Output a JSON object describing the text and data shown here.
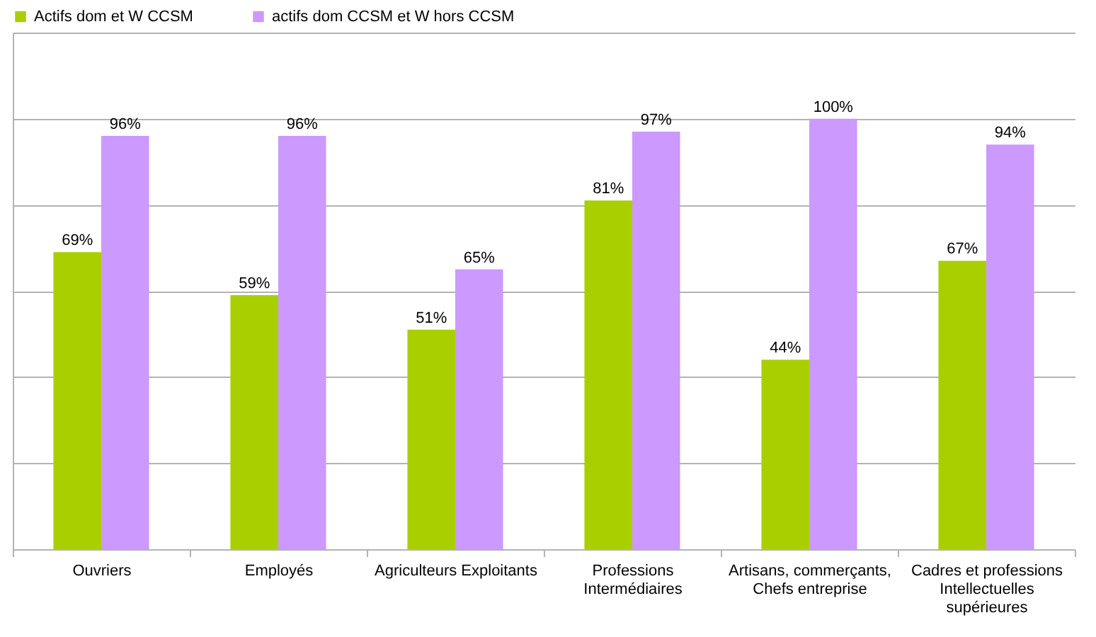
{
  "chart_data": {
    "type": "bar",
    "categories": [
      "Ouvriers",
      "Employés",
      "Agriculteurs Exploitants",
      "Professions Intermédiaires",
      "Artisans, commerçants, Chefs entreprise",
      "Cadres et professions Intellectuelles supérieures"
    ],
    "series": [
      {
        "name": "Actifs dom et W CCSM",
        "color": "#aacf00",
        "values": [
          69,
          59,
          51,
          81,
          44,
          67
        ],
        "value_labels": [
          "69%",
          "59%",
          "51%",
          "81%",
          "44%",
          "67%"
        ]
      },
      {
        "name": "actifs dom CCSM et W hors CCSM",
        "color": "#cc99ff",
        "values": [
          96,
          96,
          65,
          97,
          100,
          94
        ],
        "value_labels": [
          "96%",
          "96%",
          "65%",
          "97%",
          "100%",
          "94%"
        ]
      }
    ],
    "ylim": [
      0,
      120
    ],
    "yticks": [
      {
        "value": 0,
        "label": null
      },
      {
        "value": 20,
        "label": null
      },
      {
        "value": 40,
        "label": null
      },
      {
        "value": 60,
        "label": null
      },
      {
        "value": 80,
        "label": null
      },
      {
        "value": 100,
        "label": null
      },
      {
        "value": 120,
        "label": null
      }
    ],
    "tick_labels": "x",
    "grid": "y",
    "legend": "top"
  }
}
